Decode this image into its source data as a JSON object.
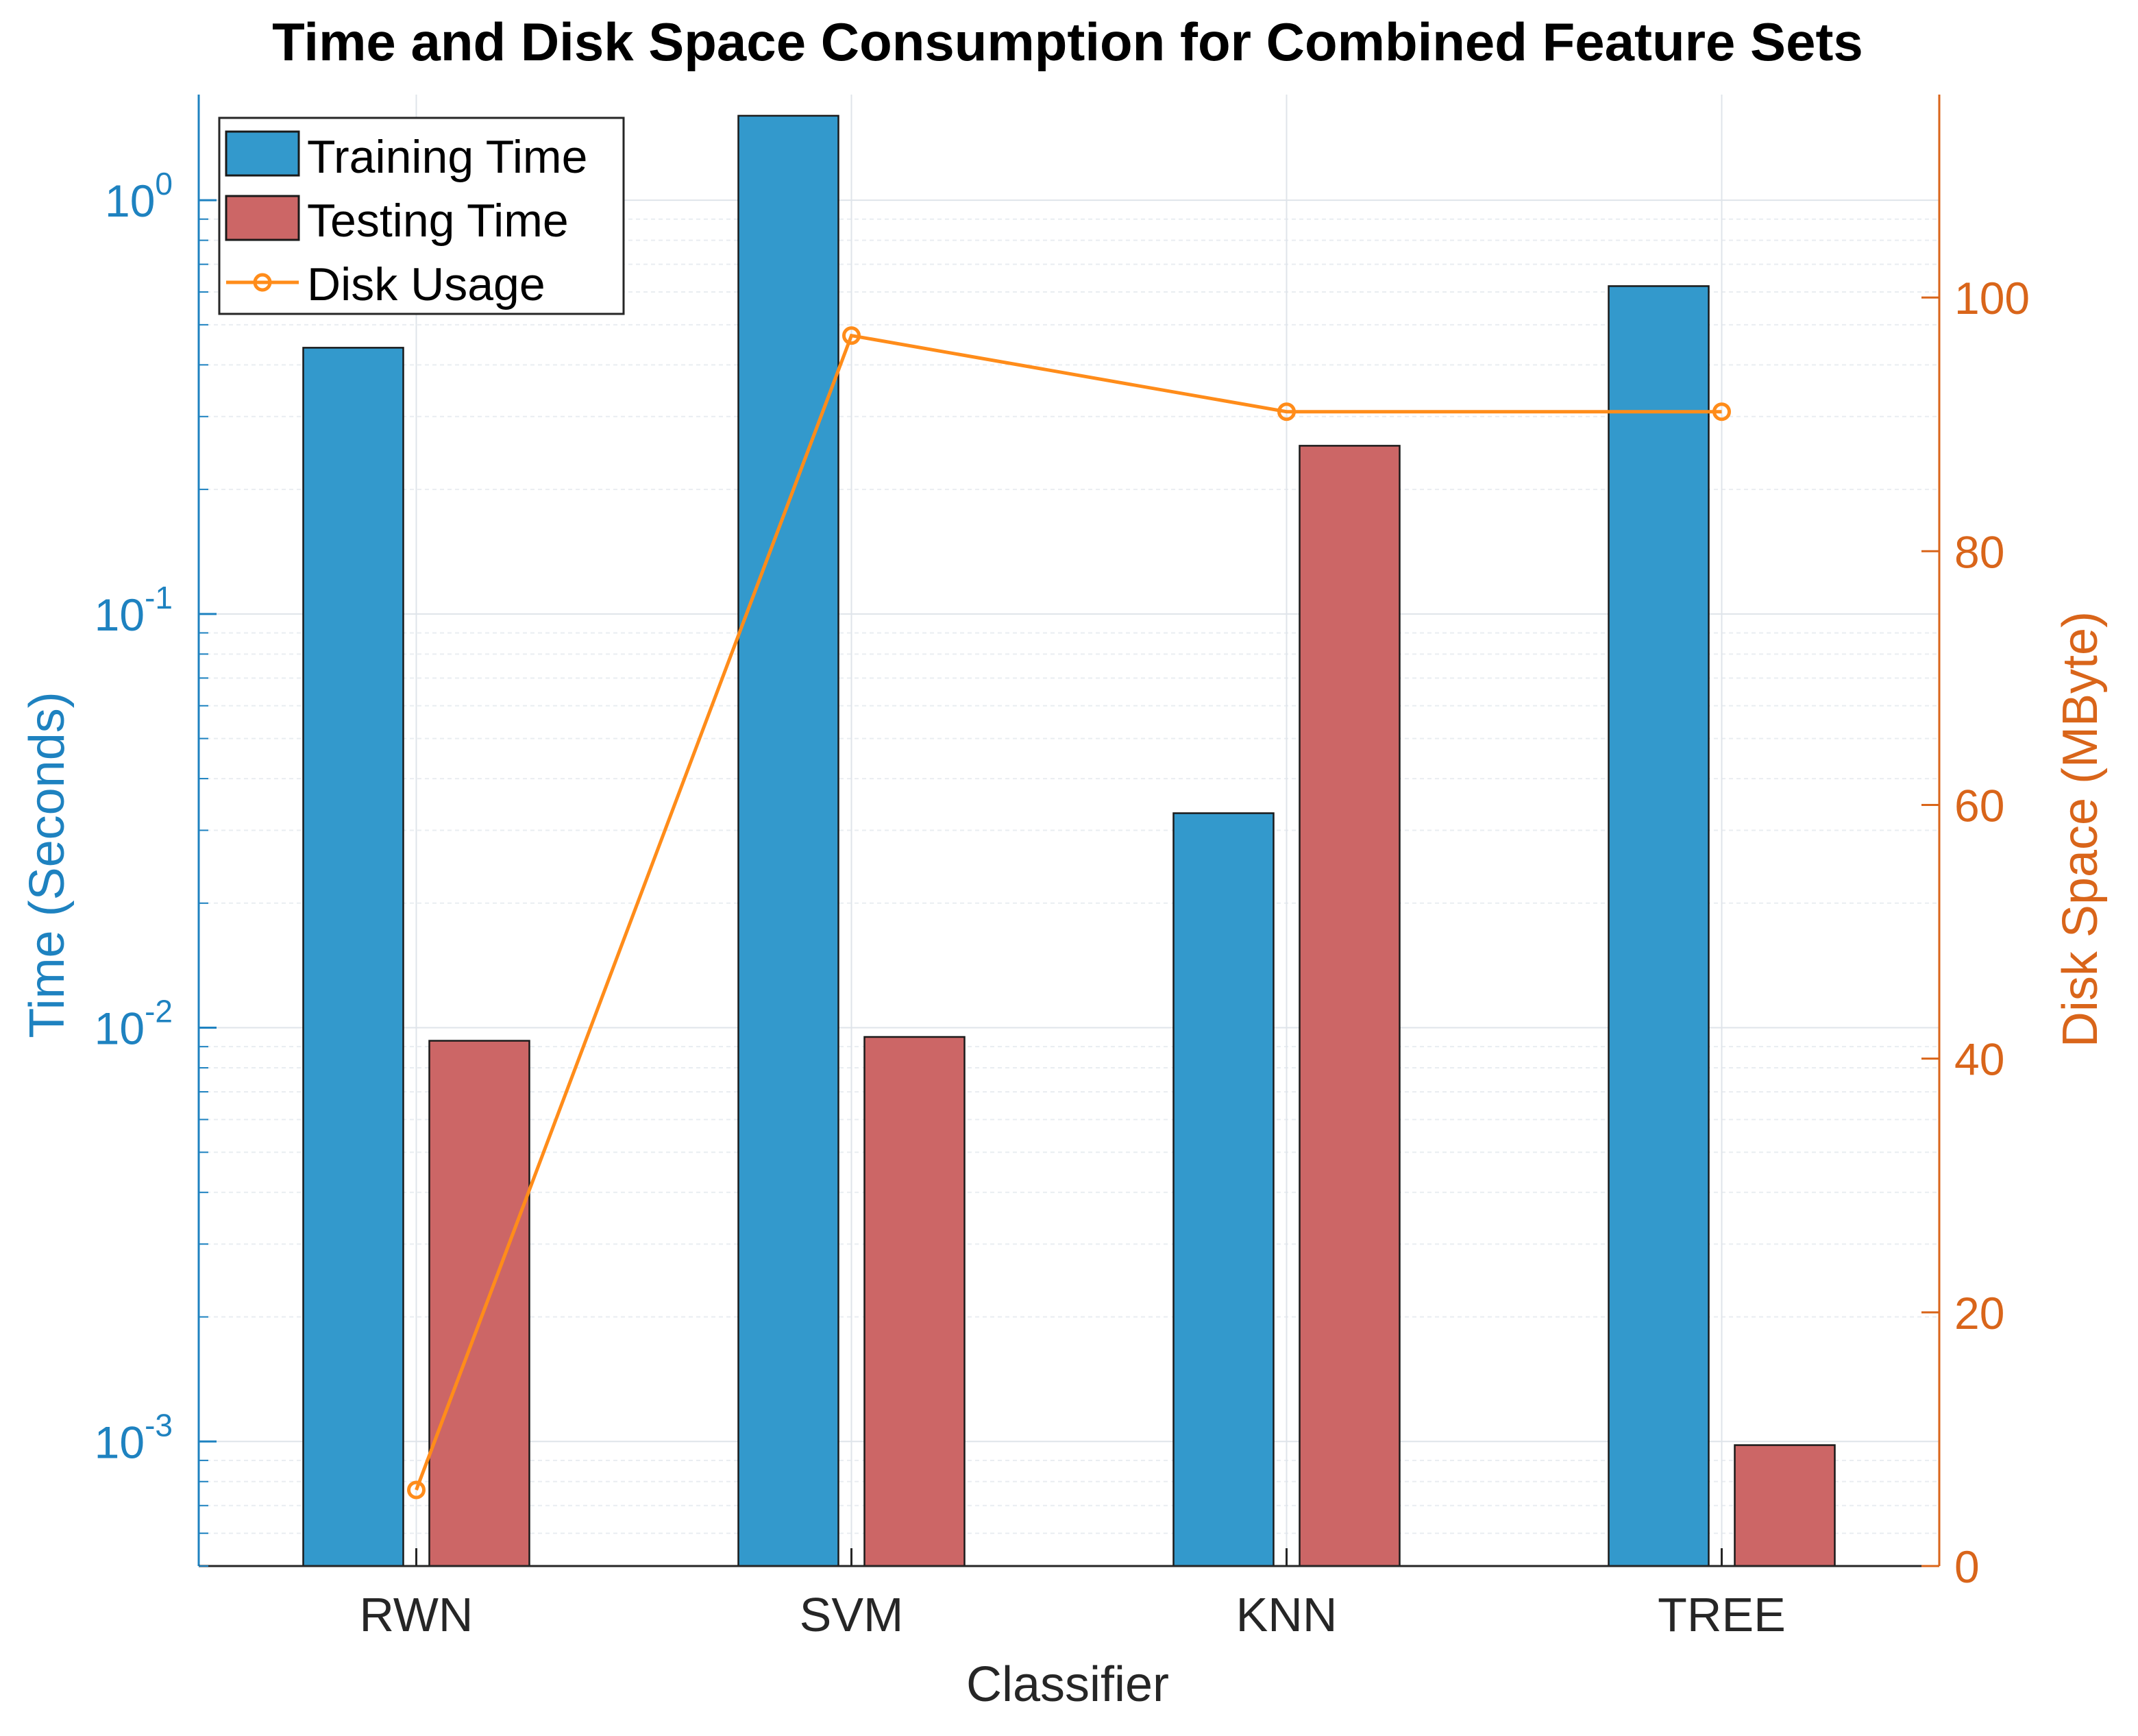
{
  "chart_data": {
    "type": "bar",
    "title": "Time and Disk Space Consumption for Combined Feature Sets",
    "xlabel": "Classifier",
    "ylabel_left": "Time (Seconds)",
    "ylabel_right": "Disk Space (MByte)",
    "categories": [
      "RWN",
      "SVM",
      "KNN",
      "TREE"
    ],
    "y_left": {
      "scale": "log",
      "ylim": [
        0.0005,
        1.8
      ],
      "ticks": [
        {
          "value": 1,
          "base": "10",
          "exp": "0"
        },
        {
          "value": 0.1,
          "base": "10",
          "exp": "-1"
        },
        {
          "value": 0.01,
          "base": "10",
          "exp": "-2"
        },
        {
          "value": 0.001,
          "base": "10",
          "exp": "-3"
        }
      ]
    },
    "y_right": {
      "scale": "linear",
      "ylim": [
        0,
        116
      ],
      "ticks": [
        "0",
        "20",
        "40",
        "60",
        "80",
        "100"
      ]
    },
    "series": [
      {
        "name": "Training Time",
        "kind": "bar",
        "axis": "left",
        "color": "#3399cc",
        "values": [
          0.44,
          1.6,
          0.033,
          0.62
        ]
      },
      {
        "name": "Testing Time",
        "kind": "bar",
        "axis": "left",
        "color": "#cc6666",
        "values": [
          0.0093,
          0.0095,
          0.255,
          0.00098
        ]
      },
      {
        "name": "Disk Usage",
        "kind": "line",
        "axis": "right",
        "color": "#ff8c1a",
        "values": [
          6,
          97,
          91,
          91
        ]
      }
    ],
    "legend_position": "top-left",
    "grid": true
  },
  "colors": {
    "left_axis": "#1e82c0",
    "right_axis": "#d9651a",
    "text": "#262626",
    "grid": "#dfe4ea",
    "grid_minor": "#e9edf1",
    "axis_line": "#262626"
  }
}
